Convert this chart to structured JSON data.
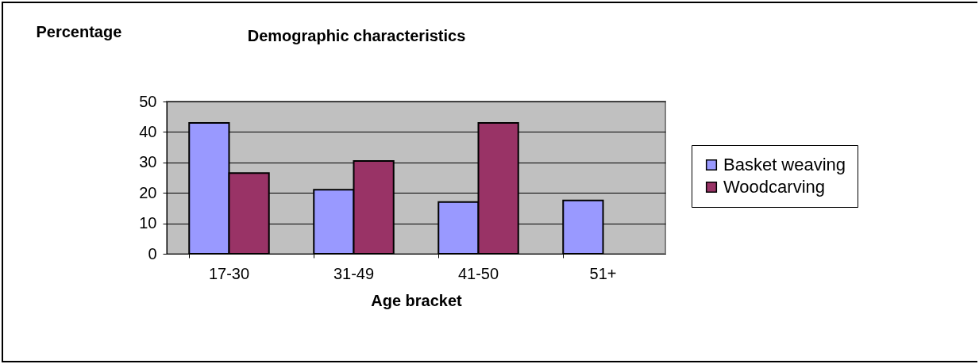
{
  "chart_data": {
    "type": "bar",
    "title": "Demographic characteristics",
    "ylabel": "Percentage",
    "xlabel": "Age bracket",
    "categories": [
      "17-30",
      "31-49",
      "41-50",
      "51+"
    ],
    "series": [
      {
        "name": "Basket weaving",
        "color": "#9999ff",
        "values": [
          43,
          21,
          17,
          17.5
        ]
      },
      {
        "name": "Woodcarving",
        "color": "#993366",
        "values": [
          26.5,
          30.5,
          43,
          null
        ]
      }
    ],
    "ylim": [
      0,
      50
    ],
    "yticks": [
      0,
      10,
      20,
      30,
      40,
      50
    ],
    "grid": "y",
    "legend": "right"
  }
}
